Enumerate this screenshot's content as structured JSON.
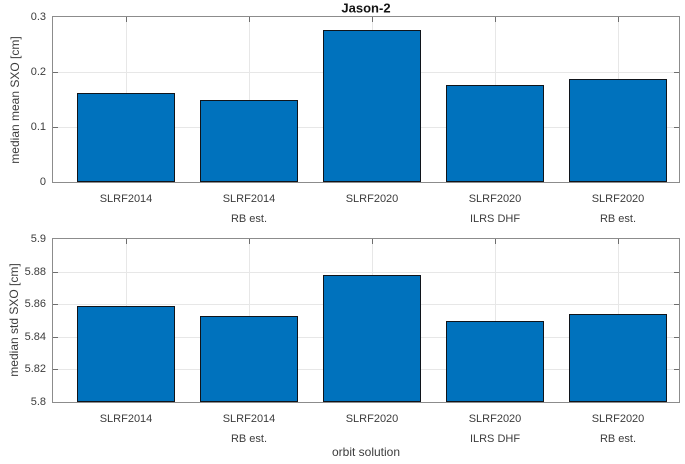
{
  "figure": {
    "title": "Jason-2"
  },
  "colors": {
    "bar_fill": "#0072BD",
    "bar_edge": "#10141a",
    "grid": "#e7e7e7",
    "axis_box": "#8c8c8c",
    "tick": "#6e6e6e",
    "text": "#3c3c3c",
    "title_text": "#141414"
  },
  "chart_data": [
    {
      "type": "bar",
      "title": "Jason-2",
      "categories": [
        "SLRF2014",
        "SLRF2014 RB est.",
        "SLRF2020",
        "SLRF2020 ILRS DHF",
        "SLRF2020 RB est."
      ],
      "category_lines": [
        [
          "SLRF2014"
        ],
        [
          "SLRF2014",
          "RB est."
        ],
        [
          "SLRF2020"
        ],
        [
          "SLRF2020",
          "ILRS DHF"
        ],
        [
          "SLRF2020",
          "RB est."
        ]
      ],
      "values": [
        0.162,
        0.15,
        0.276,
        0.177,
        0.188
      ],
      "xlabel": "",
      "ylabel": "median mean SXO [cm]",
      "ylim": [
        0,
        0.3
      ],
      "yticks": [
        {
          "value": 0,
          "label": "0"
        },
        {
          "value": 0.1,
          "label": "0.1"
        },
        {
          "value": 0.2,
          "label": "0.2"
        },
        {
          "value": 0.3,
          "label": "0.3"
        }
      ],
      "grid": true,
      "legend_position": "none",
      "bar_color": "#0072BD"
    },
    {
      "type": "bar",
      "title": "",
      "categories": [
        "SLRF2014",
        "SLRF2014 RB est.",
        "SLRF2020",
        "SLRF2020 ILRS DHF",
        "SLRF2020 RB est."
      ],
      "category_lines": [
        [
          "SLRF2014"
        ],
        [
          "SLRF2014",
          "RB est."
        ],
        [
          "SLRF2020"
        ],
        [
          "SLRF2020",
          "ILRS DHF"
        ],
        [
          "SLRF2020",
          "RB est."
        ]
      ],
      "values": [
        5.859,
        5.853,
        5.878,
        5.85,
        5.854
      ],
      "xlabel": "orbit solution",
      "ylabel": "median std SXO [cm]",
      "ylim": [
        5.8,
        5.9
      ],
      "yticks": [
        {
          "value": 5.8,
          "label": "5.8"
        },
        {
          "value": 5.82,
          "label": "5.82"
        },
        {
          "value": 5.84,
          "label": "5.84"
        },
        {
          "value": 5.86,
          "label": "5.86"
        },
        {
          "value": 5.88,
          "label": "5.88"
        },
        {
          "value": 5.9,
          "label": "5.9"
        }
      ],
      "grid": true,
      "legend_position": "none",
      "bar_color": "#0072BD"
    }
  ]
}
